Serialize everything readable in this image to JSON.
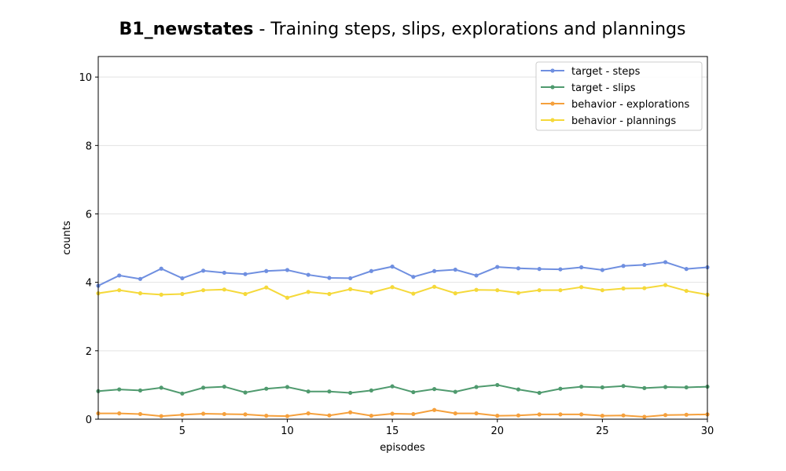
{
  "chart_data": {
    "type": "line",
    "title_bold": "B1_newstates",
    "title_rest": " - Training steps, slips, explorations and plannings",
    "xlabel": "episodes",
    "ylabel": "counts",
    "xlim": [
      1,
      30
    ],
    "ylim": [
      0,
      10.6
    ],
    "xticks": [
      5,
      10,
      15,
      20,
      25,
      30
    ],
    "yticks": [
      0,
      2,
      4,
      6,
      8,
      10
    ],
    "grid": "horizontal",
    "legend_position": "top-right",
    "x": [
      1,
      2,
      3,
      4,
      5,
      6,
      7,
      8,
      9,
      10,
      11,
      12,
      13,
      14,
      15,
      16,
      17,
      18,
      19,
      20,
      21,
      22,
      23,
      24,
      25,
      26,
      27,
      28,
      29,
      30
    ],
    "series": [
      {
        "name": "target - steps",
        "color": "#6f8fe0",
        "values": [
          3.9,
          4.2,
          4.1,
          4.4,
          4.12,
          4.34,
          4.28,
          4.24,
          4.33,
          4.36,
          4.22,
          4.13,
          4.12,
          4.33,
          4.46,
          4.16,
          4.33,
          4.37,
          4.2,
          4.45,
          4.41,
          4.39,
          4.38,
          4.44,
          4.36,
          4.48,
          4.51,
          4.59,
          4.39,
          4.44
        ]
      },
      {
        "name": "target - slips",
        "color": "#4f9a6e",
        "values": [
          0.82,
          0.87,
          0.84,
          0.92,
          0.75,
          0.92,
          0.95,
          0.78,
          0.89,
          0.94,
          0.81,
          0.81,
          0.77,
          0.84,
          0.96,
          0.79,
          0.88,
          0.8,
          0.94,
          1.0,
          0.87,
          0.77,
          0.89,
          0.95,
          0.93,
          0.97,
          0.91,
          0.94,
          0.93,
          0.95
        ]
      },
      {
        "name": "behavior - explorations",
        "color": "#f5a03c",
        "values": [
          0.17,
          0.17,
          0.15,
          0.09,
          0.13,
          0.16,
          0.15,
          0.14,
          0.1,
          0.09,
          0.17,
          0.11,
          0.2,
          0.1,
          0.16,
          0.15,
          0.27,
          0.17,
          0.17,
          0.1,
          0.11,
          0.14,
          0.14,
          0.14,
          0.1,
          0.11,
          0.07,
          0.12,
          0.13,
          0.14
        ]
      },
      {
        "name": "behavior - plannings",
        "color": "#f5d93a",
        "values": [
          3.68,
          3.77,
          3.68,
          3.64,
          3.66,
          3.77,
          3.79,
          3.66,
          3.85,
          3.55,
          3.72,
          3.66,
          3.8,
          3.7,
          3.86,
          3.67,
          3.87,
          3.68,
          3.78,
          3.77,
          3.69,
          3.77,
          3.77,
          3.86,
          3.77,
          3.82,
          3.83,
          3.92,
          3.75,
          3.64
        ]
      }
    ]
  }
}
